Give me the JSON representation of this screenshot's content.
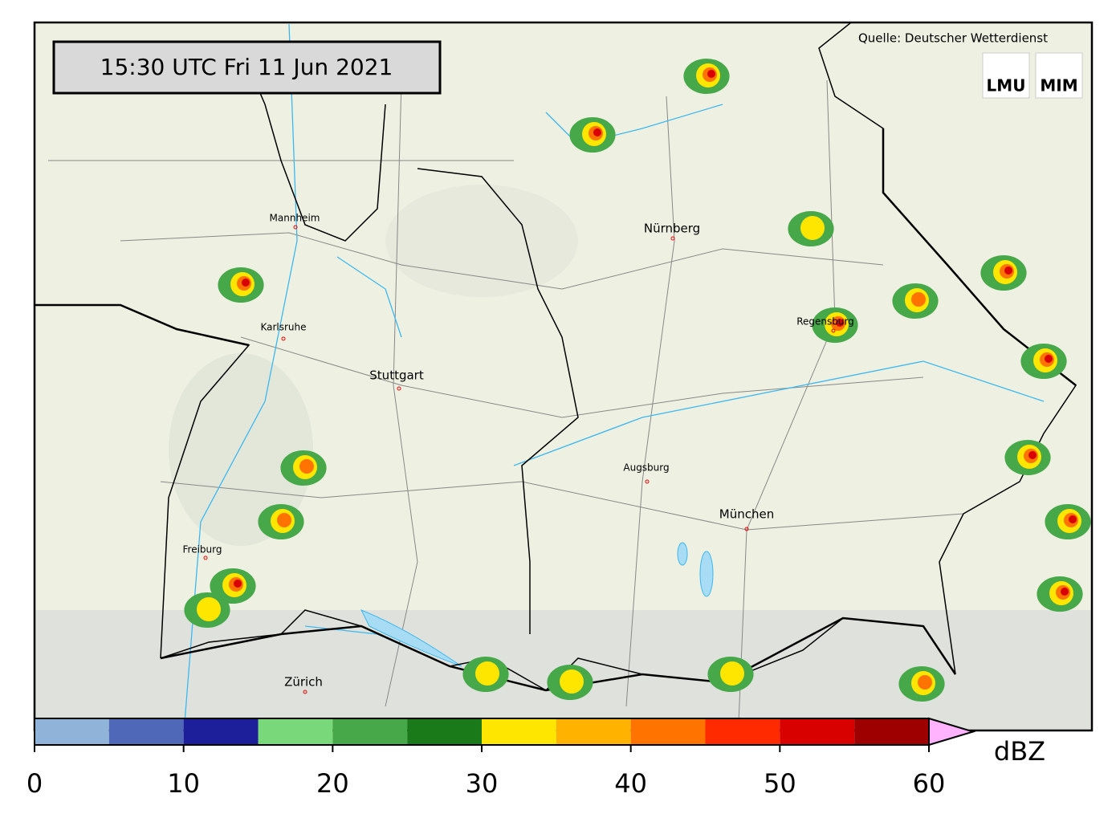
{
  "header": {
    "timestamp": "15:30 UTC  Fri 11 Jun 2021",
    "source": "Quelle: Deutscher Wetterdienst",
    "logos": [
      "LMU",
      "MIM"
    ]
  },
  "cities": [
    "Mannheim",
    "Nürnberg",
    "Karlsruhe",
    "Stuttgart",
    "Regensburg",
    "Augsburg",
    "München",
    "Freiburg",
    "Zürich"
  ],
  "colorbar": {
    "label": "dBZ",
    "lim": [
      0,
      60
    ],
    "bounds": [
      0,
      5,
      10,
      15,
      20,
      25,
      30,
      35,
      40,
      45,
      50,
      55,
      60
    ],
    "colors": [
      "#8fb3d9",
      "#5068b8",
      "#1c1f99",
      "#79d879",
      "#47a84a",
      "#1a7a1a",
      "#ffe600",
      "#ffb300",
      "#ff7300",
      "#ff2a00",
      "#d90000",
      "#9e0000"
    ],
    "extend_color": "#ffb3ff",
    "ticks": [
      0,
      10,
      20,
      30,
      40,
      50,
      60
    ]
  }
}
